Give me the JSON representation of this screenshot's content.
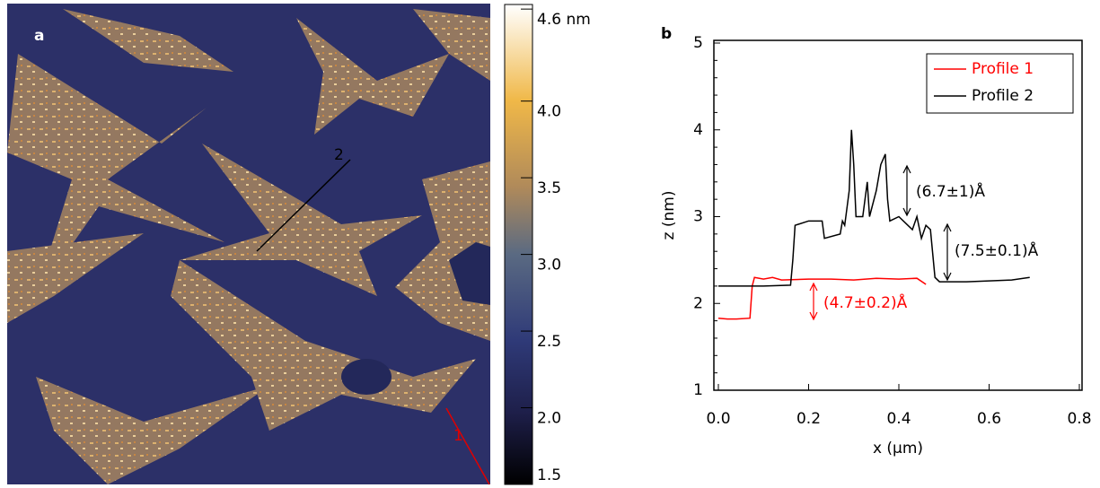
{
  "chart_data": [
    {
      "type": "image",
      "panel_label": "a",
      "line_labels": [
        "2",
        "1"
      ],
      "colorbar": {
        "clim": [
          1.5,
          4.63
        ],
        "ticks": [
          {
            "value": 4.6,
            "label": "4.6 nm"
          },
          {
            "value": 4.0,
            "label": "4.0"
          },
          {
            "value": 3.5,
            "label": "3.5"
          },
          {
            "value": 3.0,
            "label": "3.0"
          },
          {
            "value": 2.5,
            "label": "2.5"
          },
          {
            "value": 2.0,
            "label": "2.0"
          },
          {
            "value": 1.5,
            "label": "1.5"
          }
        ]
      }
    },
    {
      "type": "line",
      "panel_label": "b",
      "x_label": "x (µm)",
      "y_label": "z (nm)",
      "xlim": [
        -0.01,
        0.8
      ],
      "ylim": [
        1,
        5
      ],
      "xticks": [
        {
          "value": 0,
          "label": "0.0"
        },
        0.2,
        0.4,
        0.6,
        0.8
      ],
      "yticks": [
        1,
        2,
        3,
        4,
        5
      ],
      "legend": "upper right",
      "series": [
        {
          "name": "Profile 1",
          "color": "#ff0000",
          "x": [
            0,
            0.02,
            0.04,
            0.07,
            0.075,
            0.08,
            0.1,
            0.12,
            0.14,
            0.2,
            0.25,
            0.3,
            0.35,
            0.4,
            0.44,
            0.46
          ],
          "values": [
            1.83,
            1.82,
            1.82,
            1.83,
            2.2,
            2.3,
            2.28,
            2.3,
            2.27,
            2.28,
            2.28,
            2.27,
            2.29,
            2.28,
            2.29,
            2.22
          ]
        },
        {
          "name": "Profile 2",
          "color": "#000000",
          "x": [
            0,
            0.1,
            0.16,
            0.165,
            0.17,
            0.2,
            0.23,
            0.235,
            0.27,
            0.275,
            0.28,
            0.29,
            0.295,
            0.3,
            0.305,
            0.32,
            0.33,
            0.335,
            0.35,
            0.36,
            0.37,
            0.375,
            0.38,
            0.4,
            0.42,
            0.43,
            0.44,
            0.45,
            0.46,
            0.47,
            0.48,
            0.49,
            0.5,
            0.55,
            0.6,
            0.65,
            0.69
          ],
          "values": [
            2.2,
            2.2,
            2.21,
            2.5,
            2.9,
            2.95,
            2.95,
            2.75,
            2.8,
            2.95,
            2.9,
            3.3,
            4.0,
            3.6,
            3.0,
            3.0,
            3.4,
            3.0,
            3.3,
            3.6,
            3.72,
            3.2,
            2.95,
            3.0,
            2.9,
            2.85,
            3.0,
            2.75,
            2.9,
            2.85,
            2.3,
            2.25,
            2.25,
            2.25,
            2.26,
            2.27,
            2.3
          ]
        }
      ],
      "annotations": [
        {
          "text": "(6.7±1)Å",
          "color": "#000000"
        },
        {
          "text": "(7.5±0.1)Å",
          "color": "#000000"
        },
        {
          "text": "(4.7±0.2)Å",
          "color": "#ff0000"
        }
      ]
    }
  ]
}
